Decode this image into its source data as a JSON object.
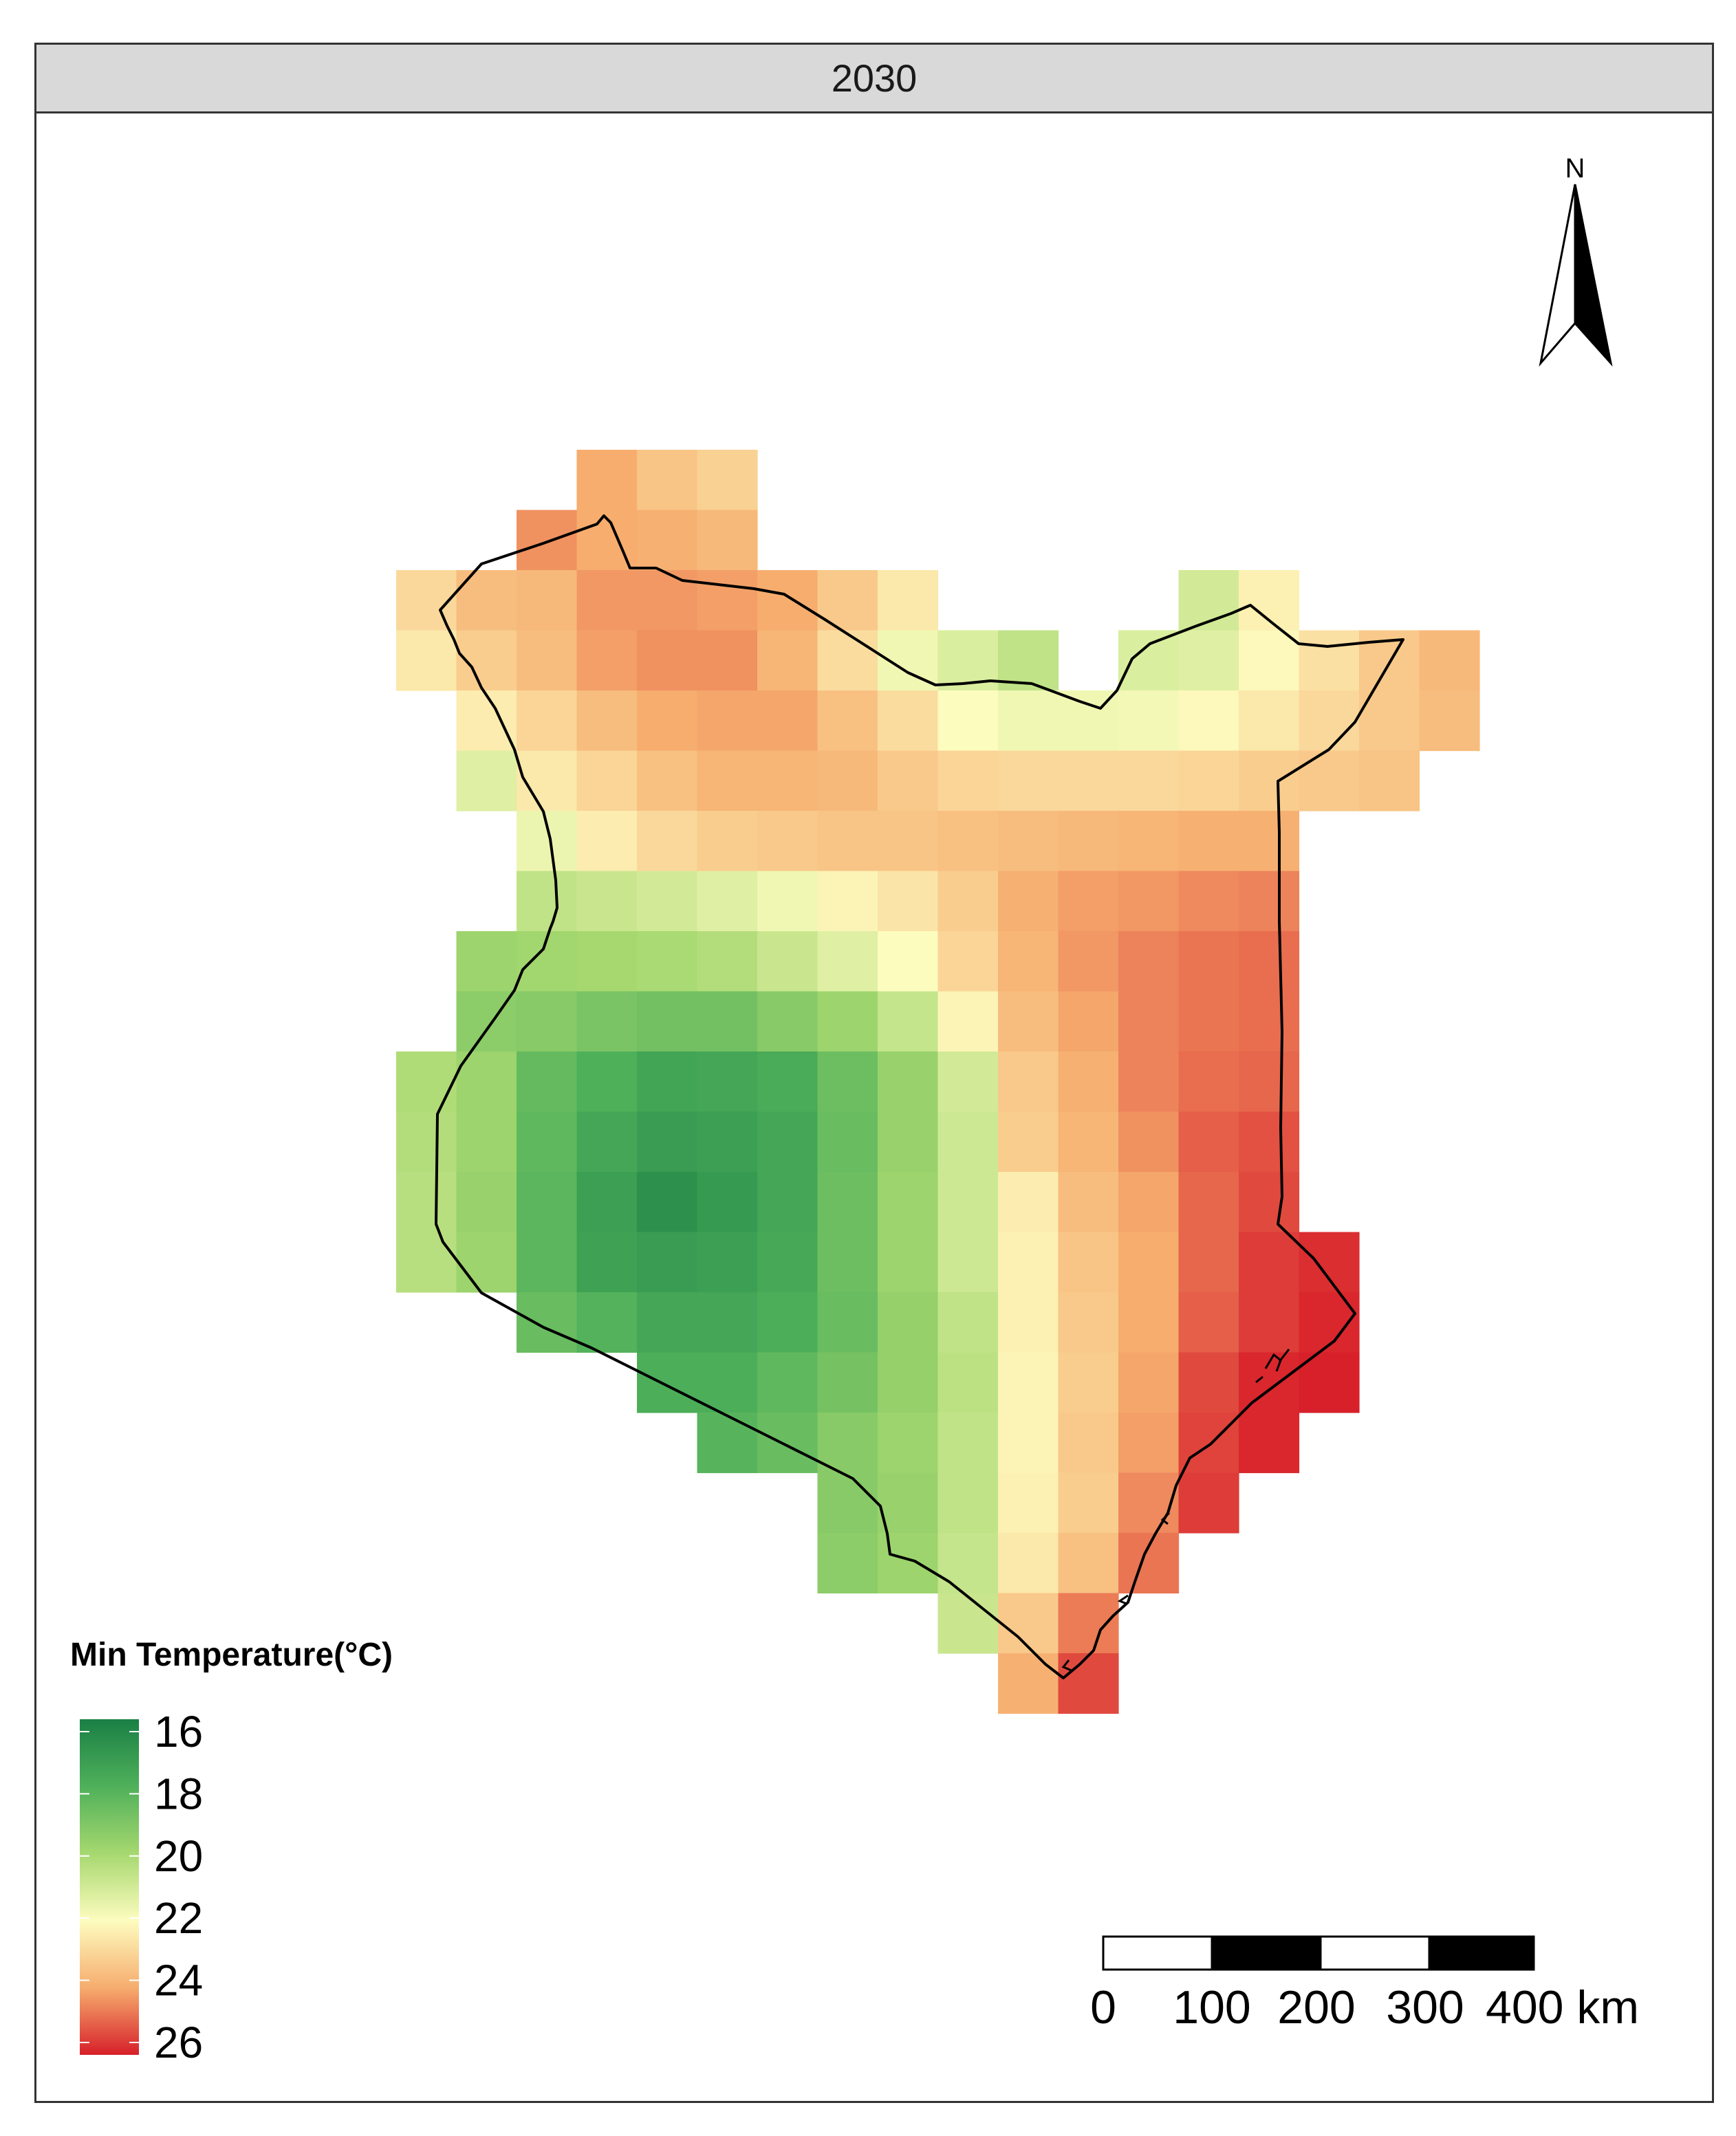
{
  "panel": {
    "title": "2030"
  },
  "north_arrow": {
    "label": "N"
  },
  "legend": {
    "title": "Min Temperature(°C)",
    "ticks": [
      "16",
      "18",
      "20",
      "22",
      "24",
      "26"
    ],
    "min": 16,
    "max": 26,
    "colors": [
      "#1a7f45",
      "#4fb05a",
      "#a6d86f",
      "#fdfcbf",
      "#f6ad6e",
      "#d7202a"
    ]
  },
  "scale_bar": {
    "labels": [
      "0",
      "100",
      "200",
      "300",
      "400 km"
    ]
  },
  "grid": {
    "origin": [
      "?",
      "?"
    ],
    "cell": [
      "?",
      "?"
    ],
    "cells": [
      [
        3,
        0,
        24.0
      ],
      [
        4,
        0,
        23.4
      ],
      [
        5,
        0,
        23.1
      ],
      [
        2,
        1,
        24.4
      ],
      [
        3,
        1,
        24.0
      ],
      [
        4,
        1,
        23.9
      ],
      [
        5,
        1,
        23.7
      ],
      [
        0,
        2,
        22.9
      ],
      [
        1,
        2,
        23.6
      ],
      [
        2,
        2,
        23.7
      ],
      [
        3,
        2,
        24.3
      ],
      [
        4,
        2,
        24.3
      ],
      [
        5,
        2,
        24.2
      ],
      [
        6,
        2,
        24.0
      ],
      [
        7,
        2,
        23.3
      ],
      [
        8,
        2,
        22.5
      ],
      [
        13,
        2,
        21.0
      ],
      [
        14,
        2,
        22.3
      ],
      [
        0,
        3,
        22.5
      ],
      [
        1,
        3,
        23.2
      ],
      [
        2,
        3,
        23.6
      ],
      [
        3,
        3,
        24.2
      ],
      [
        4,
        3,
        24.4
      ],
      [
        5,
        3,
        24.4
      ],
      [
        6,
        3,
        23.8
      ],
      [
        7,
        3,
        22.8
      ],
      [
        8,
        3,
        21.7
      ],
      [
        9,
        3,
        21.2
      ],
      [
        10,
        3,
        20.6
      ],
      [
        12,
        3,
        21.2
      ],
      [
        13,
        3,
        21.3
      ],
      [
        14,
        3,
        22.1
      ],
      [
        15,
        3,
        22.7
      ],
      [
        16,
        3,
        23.3
      ],
      [
        17,
        3,
        23.7
      ],
      [
        1,
        4,
        22.4
      ],
      [
        2,
        4,
        23.0
      ],
      [
        3,
        4,
        23.6
      ],
      [
        4,
        4,
        24.0
      ],
      [
        5,
        4,
        24.1
      ],
      [
        6,
        4,
        24.1
      ],
      [
        7,
        4,
        23.5
      ],
      [
        8,
        4,
        22.8
      ],
      [
        9,
        4,
        22.0
      ],
      [
        10,
        4,
        21.7
      ],
      [
        11,
        4,
        21.7
      ],
      [
        12,
        4,
        21.8
      ],
      [
        13,
        4,
        22.1
      ],
      [
        14,
        4,
        22.5
      ],
      [
        15,
        4,
        22.9
      ],
      [
        16,
        4,
        23.3
      ],
      [
        17,
        4,
        23.6
      ],
      [
        1,
        5,
        21.3
      ],
      [
        2,
        5,
        22.5
      ],
      [
        3,
        5,
        23.0
      ],
      [
        4,
        5,
        23.5
      ],
      [
        5,
        5,
        23.8
      ],
      [
        6,
        5,
        23.8
      ],
      [
        7,
        5,
        23.7
      ],
      [
        8,
        5,
        23.3
      ],
      [
        9,
        5,
        23.0
      ],
      [
        10,
        5,
        22.9
      ],
      [
        11,
        5,
        22.9
      ],
      [
        12,
        5,
        22.9
      ],
      [
        13,
        5,
        23.0
      ],
      [
        14,
        5,
        23.2
      ],
      [
        15,
        5,
        23.3
      ],
      [
        16,
        5,
        23.4
      ],
      [
        2,
        6,
        21.6
      ],
      [
        3,
        6,
        22.4
      ],
      [
        4,
        6,
        22.9
      ],
      [
        5,
        6,
        23.2
      ],
      [
        6,
        6,
        23.3
      ],
      [
        7,
        6,
        23.4
      ],
      [
        8,
        6,
        23.4
      ],
      [
        9,
        6,
        23.5
      ],
      [
        10,
        6,
        23.6
      ],
      [
        11,
        6,
        23.7
      ],
      [
        12,
        6,
        23.8
      ],
      [
        13,
        6,
        23.9
      ],
      [
        14,
        6,
        23.9
      ],
      [
        2,
        7,
        20.6
      ],
      [
        3,
        7,
        20.8
      ],
      [
        4,
        7,
        21.0
      ],
      [
        5,
        7,
        21.3
      ],
      [
        6,
        7,
        21.7
      ],
      [
        7,
        7,
        22.2
      ],
      [
        8,
        7,
        22.6
      ],
      [
        9,
        7,
        23.2
      ],
      [
        10,
        7,
        23.9
      ],
      [
        11,
        7,
        24.2
      ],
      [
        12,
        7,
        24.3
      ],
      [
        13,
        7,
        24.5
      ],
      [
        14,
        7,
        24.6
      ],
      [
        1,
        8,
        19.8
      ],
      [
        2,
        8,
        19.9
      ],
      [
        3,
        8,
        20.0
      ],
      [
        4,
        8,
        20.1
      ],
      [
        5,
        8,
        20.3
      ],
      [
        6,
        8,
        20.8
      ],
      [
        7,
        8,
        21.3
      ],
      [
        8,
        8,
        22.0
      ],
      [
        9,
        8,
        23.0
      ],
      [
        10,
        8,
        23.8
      ],
      [
        11,
        8,
        24.3
      ],
      [
        12,
        8,
        24.6
      ],
      [
        13,
        8,
        24.8
      ],
      [
        14,
        8,
        24.9
      ],
      [
        1,
        9,
        19.4
      ],
      [
        2,
        9,
        19.3
      ],
      [
        3,
        9,
        19.0
      ],
      [
        4,
        9,
        18.8
      ],
      [
        5,
        9,
        18.8
      ],
      [
        6,
        9,
        19.3
      ],
      [
        7,
        9,
        19.8
      ],
      [
        8,
        9,
        20.7
      ],
      [
        9,
        9,
        22.2
      ],
      [
        10,
        9,
        23.6
      ],
      [
        11,
        9,
        24.1
      ],
      [
        12,
        9,
        24.6
      ],
      [
        13,
        9,
        24.8
      ],
      [
        14,
        9,
        24.9
      ],
      [
        0,
        10,
        20.2
      ],
      [
        1,
        10,
        19.8
      ],
      [
        2,
        10,
        18.5
      ],
      [
        3,
        10,
        18.0
      ],
      [
        4,
        10,
        17.5
      ],
      [
        5,
        10,
        17.6
      ],
      [
        6,
        10,
        17.8
      ],
      [
        7,
        10,
        18.7
      ],
      [
        8,
        10,
        19.7
      ],
      [
        9,
        10,
        21.0
      ],
      [
        10,
        10,
        23.3
      ],
      [
        11,
        10,
        23.9
      ],
      [
        12,
        10,
        24.6
      ],
      [
        13,
        10,
        24.9
      ],
      [
        14,
        10,
        25.0
      ],
      [
        0,
        11,
        20.3
      ],
      [
        1,
        11,
        19.8
      ],
      [
        2,
        11,
        18.4
      ],
      [
        3,
        11,
        17.6
      ],
      [
        4,
        11,
        17.2
      ],
      [
        5,
        11,
        17.3
      ],
      [
        6,
        11,
        17.6
      ],
      [
        7,
        11,
        18.6
      ],
      [
        8,
        11,
        19.7
      ],
      [
        9,
        11,
        20.9
      ],
      [
        10,
        11,
        23.2
      ],
      [
        11,
        11,
        23.8
      ],
      [
        12,
        11,
        24.4
      ],
      [
        13,
        11,
        25.1
      ],
      [
        14,
        11,
        25.3
      ],
      [
        0,
        12,
        20.4
      ],
      [
        1,
        12,
        19.7
      ],
      [
        2,
        12,
        18.3
      ],
      [
        3,
        12,
        17.3
      ],
      [
        4,
        12,
        16.7
      ],
      [
        5,
        12,
        17.1
      ],
      [
        6,
        12,
        17.6
      ],
      [
        7,
        12,
        18.7
      ],
      [
        8,
        12,
        19.8
      ],
      [
        9,
        12,
        20.9
      ],
      [
        10,
        12,
        22.4
      ],
      [
        11,
        12,
        23.6
      ],
      [
        12,
        12,
        24.1
      ],
      [
        13,
        12,
        25.0
      ],
      [
        14,
        12,
        25.4
      ],
      [
        0,
        13,
        20.4
      ],
      [
        1,
        13,
        19.8
      ],
      [
        2,
        13,
        18.3
      ],
      [
        3,
        13,
        17.4
      ],
      [
        4,
        13,
        17.2
      ],
      [
        5,
        13,
        17.3
      ],
      [
        6,
        13,
        17.7
      ],
      [
        7,
        13,
        18.7
      ],
      [
        8,
        13,
        19.8
      ],
      [
        9,
        13,
        20.9
      ],
      [
        10,
        13,
        22.3
      ],
      [
        11,
        13,
        23.4
      ],
      [
        12,
        13,
        24.0
      ],
      [
        13,
        13,
        25.0
      ],
      [
        14,
        13,
        25.6
      ],
      [
        15,
        13,
        25.8
      ],
      [
        2,
        14,
        18.6
      ],
      [
        3,
        14,
        18.1
      ],
      [
        4,
        14,
        17.6
      ],
      [
        5,
        14,
        17.6
      ],
      [
        6,
        14,
        17.9
      ],
      [
        7,
        14,
        18.6
      ],
      [
        8,
        14,
        19.6
      ],
      [
        9,
        14,
        20.6
      ],
      [
        10,
        14,
        22.3
      ],
      [
        11,
        14,
        23.3
      ],
      [
        12,
        14,
        24.0
      ],
      [
        13,
        14,
        25.1
      ],
      [
        14,
        14,
        25.6
      ],
      [
        15,
        14,
        25.9
      ],
      [
        4,
        15,
        17.9
      ],
      [
        5,
        15,
        17.9
      ],
      [
        6,
        15,
        18.4
      ],
      [
        7,
        15,
        18.9
      ],
      [
        8,
        15,
        19.6
      ],
      [
        9,
        15,
        20.5
      ],
      [
        10,
        15,
        22.2
      ],
      [
        11,
        15,
        23.2
      ],
      [
        12,
        15,
        24.1
      ],
      [
        13,
        15,
        25.4
      ],
      [
        14,
        15,
        25.9
      ],
      [
        15,
        15,
        26.0
      ],
      [
        5,
        16,
        18.2
      ],
      [
        6,
        16,
        18.6
      ],
      [
        7,
        16,
        19.3
      ],
      [
        8,
        16,
        19.8
      ],
      [
        9,
        16,
        20.6
      ],
      [
        10,
        16,
        22.2
      ],
      [
        11,
        16,
        23.3
      ],
      [
        12,
        16,
        24.2
      ],
      [
        13,
        16,
        25.5
      ],
      [
        14,
        16,
        25.9
      ],
      [
        7,
        17,
        19.3
      ],
      [
        8,
        17,
        19.7
      ],
      [
        9,
        17,
        20.6
      ],
      [
        10,
        17,
        22.3
      ],
      [
        11,
        17,
        23.2
      ],
      [
        12,
        17,
        24.5
      ],
      [
        13,
        17,
        25.6
      ],
      [
        7,
        18,
        19.4
      ],
      [
        8,
        18,
        19.8
      ],
      [
        9,
        18,
        20.7
      ],
      [
        10,
        18,
        22.5
      ],
      [
        11,
        18,
        23.5
      ],
      [
        12,
        18,
        24.8
      ],
      [
        9,
        19,
        20.8
      ],
      [
        10,
        19,
        23.3
      ],
      [
        11,
        19,
        24.7
      ],
      [
        10,
        20,
        23.9
      ],
      [
        11,
        20,
        25.4
      ]
    ]
  }
}
